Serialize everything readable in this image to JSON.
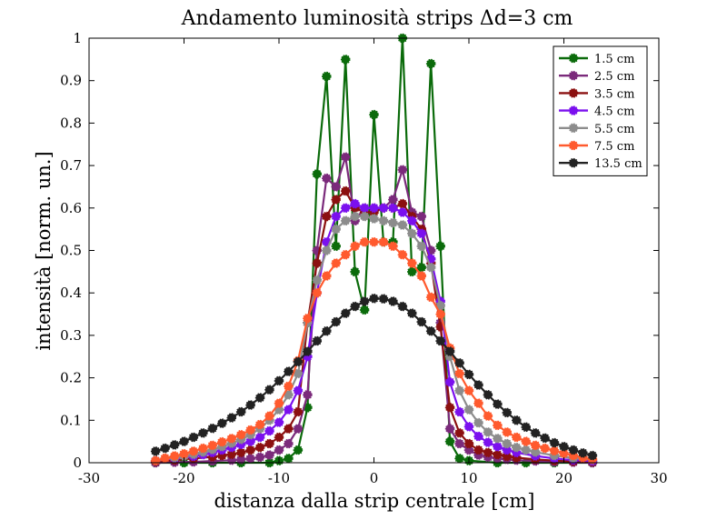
{
  "chart_data": {
    "type": "line",
    "title": "Andamento luminosità strips Δd=3 cm",
    "xlabel": "distanza dalla strip centrale [cm]",
    "ylabel": "intensità [norm. un.]",
    "xlim": [
      -30,
      30
    ],
    "ylim": [
      0,
      1
    ],
    "xticks": [
      "-30",
      "-20",
      "-10",
      "0",
      "10",
      "20",
      "30"
    ],
    "yticks": [
      "0",
      "0.1",
      "0.2",
      "0.3",
      "0.4",
      "0.5",
      "0.6",
      "0.7",
      "0.8",
      "0.9",
      "1"
    ],
    "grid": false,
    "legend_position": "top-right",
    "series": [
      {
        "name": "1.5 cm",
        "color": "#0b6b0b",
        "points": [
          [
            -23,
            0.0
          ],
          [
            -20,
            0.0
          ],
          [
            -17,
            0.0
          ],
          [
            -14,
            0.0
          ],
          [
            -11,
            0.0
          ],
          [
            -10,
            0.005
          ],
          [
            -9,
            0.01
          ],
          [
            -8,
            0.03
          ],
          [
            -7,
            0.13
          ],
          [
            -6,
            0.68
          ],
          [
            -5,
            0.91
          ],
          [
            -4,
            0.51
          ],
          [
            -3,
            0.95
          ],
          [
            -2,
            0.45
          ],
          [
            -1,
            0.36
          ],
          [
            0,
            0.82
          ],
          [
            1,
            0.52
          ],
          [
            2,
            0.52
          ],
          [
            3,
            1.0
          ],
          [
            4,
            0.45
          ],
          [
            5,
            0.46
          ],
          [
            6,
            0.94
          ],
          [
            7,
            0.51
          ],
          [
            8,
            0.05
          ],
          [
            9,
            0.01
          ],
          [
            10,
            0.005
          ],
          [
            13,
            0.0
          ],
          [
            16,
            0.0
          ],
          [
            19,
            0.0
          ],
          [
            23,
            0.0
          ]
        ]
      },
      {
        "name": "2.5 cm",
        "color": "#7b2a7b",
        "points": [
          [
            -23,
            0.0
          ],
          [
            -21,
            0.001
          ],
          [
            -19,
            0.002
          ],
          [
            -17,
            0.004
          ],
          [
            -15,
            0.006
          ],
          [
            -14,
            0.008
          ],
          [
            -13,
            0.01
          ],
          [
            -12,
            0.013
          ],
          [
            -11,
            0.018
          ],
          [
            -10,
            0.03
          ],
          [
            -9,
            0.045
          ],
          [
            -8,
            0.08
          ],
          [
            -7,
            0.16
          ],
          [
            -6,
            0.5
          ],
          [
            -5,
            0.67
          ],
          [
            -4,
            0.65
          ],
          [
            -3,
            0.72
          ],
          [
            -2,
            0.57
          ],
          [
            -1,
            0.6
          ],
          [
            0,
            0.6
          ],
          [
            1,
            0.6
          ],
          [
            2,
            0.62
          ],
          [
            3,
            0.69
          ],
          [
            4,
            0.59
          ],
          [
            5,
            0.58
          ],
          [
            6,
            0.5
          ],
          [
            7,
            0.33
          ],
          [
            8,
            0.08
          ],
          [
            9,
            0.045
          ],
          [
            10,
            0.03
          ],
          [
            11,
            0.018
          ],
          [
            12,
            0.013
          ],
          [
            13,
            0.01
          ],
          [
            14,
            0.008
          ],
          [
            15,
            0.006
          ],
          [
            17,
            0.004
          ],
          [
            19,
            0.002
          ],
          [
            21,
            0.001
          ],
          [
            23,
            0.0
          ]
        ]
      },
      {
        "name": "3.5 cm",
        "color": "#8b1010",
        "points": [
          [
            -23,
            0.003
          ],
          [
            -21,
            0.006
          ],
          [
            -19,
            0.01
          ],
          [
            -17,
            0.014
          ],
          [
            -16,
            0.017
          ],
          [
            -15,
            0.02
          ],
          [
            -14,
            0.024
          ],
          [
            -13,
            0.03
          ],
          [
            -12,
            0.036
          ],
          [
            -11,
            0.045
          ],
          [
            -10,
            0.06
          ],
          [
            -9,
            0.08
          ],
          [
            -8,
            0.12
          ],
          [
            -7,
            0.33
          ],
          [
            -6,
            0.47
          ],
          [
            -5,
            0.58
          ],
          [
            -4,
            0.62
          ],
          [
            -3,
            0.64
          ],
          [
            -2,
            0.6
          ],
          [
            -1,
            0.59
          ],
          [
            0,
            0.59
          ],
          [
            1,
            0.6
          ],
          [
            2,
            0.6
          ],
          [
            3,
            0.61
          ],
          [
            4,
            0.58
          ],
          [
            5,
            0.55
          ],
          [
            6,
            0.47
          ],
          [
            7,
            0.32
          ],
          [
            8,
            0.13
          ],
          [
            9,
            0.07
          ],
          [
            10,
            0.045
          ],
          [
            11,
            0.03
          ],
          [
            12,
            0.024
          ],
          [
            13,
            0.019
          ],
          [
            14,
            0.015
          ],
          [
            15,
            0.012
          ],
          [
            17,
            0.008
          ],
          [
            19,
            0.005
          ],
          [
            21,
            0.003
          ],
          [
            23,
            0.002
          ]
        ]
      },
      {
        "name": "4.5 cm",
        "color": "#7b10ee",
        "points": [
          [
            -23,
            0.005
          ],
          [
            -21,
            0.01
          ],
          [
            -19,
            0.015
          ],
          [
            -18,
            0.019
          ],
          [
            -17,
            0.024
          ],
          [
            -16,
            0.03
          ],
          [
            -15,
            0.036
          ],
          [
            -14,
            0.043
          ],
          [
            -13,
            0.05
          ],
          [
            -12,
            0.06
          ],
          [
            -11,
            0.075
          ],
          [
            -10,
            0.095
          ],
          [
            -9,
            0.125
          ],
          [
            -8,
            0.17
          ],
          [
            -7,
            0.25
          ],
          [
            -6,
            0.4
          ],
          [
            -5,
            0.52
          ],
          [
            -4,
            0.58
          ],
          [
            -3,
            0.6
          ],
          [
            -2,
            0.61
          ],
          [
            -1,
            0.6
          ],
          [
            0,
            0.6
          ],
          [
            1,
            0.6
          ],
          [
            2,
            0.6
          ],
          [
            3,
            0.59
          ],
          [
            4,
            0.57
          ],
          [
            5,
            0.54
          ],
          [
            6,
            0.48
          ],
          [
            7,
            0.38
          ],
          [
            8,
            0.19
          ],
          [
            9,
            0.12
          ],
          [
            10,
            0.085
          ],
          [
            11,
            0.062
          ],
          [
            12,
            0.048
          ],
          [
            13,
            0.038
          ],
          [
            14,
            0.03
          ],
          [
            15,
            0.024
          ],
          [
            17,
            0.016
          ],
          [
            19,
            0.01
          ],
          [
            21,
            0.006
          ],
          [
            23,
            0.004
          ]
        ]
      },
      {
        "name": "5.5 cm",
        "color": "#8c8c8c",
        "points": [
          [
            -23,
            0.005
          ],
          [
            -21,
            0.012
          ],
          [
            -20,
            0.016
          ],
          [
            -19,
            0.02
          ],
          [
            -18,
            0.025
          ],
          [
            -17,
            0.031
          ],
          [
            -16,
            0.038
          ],
          [
            -15,
            0.046
          ],
          [
            -14,
            0.055
          ],
          [
            -13,
            0.066
          ],
          [
            -12,
            0.08
          ],
          [
            -11,
            0.1
          ],
          [
            -10,
            0.125
          ],
          [
            -9,
            0.16
          ],
          [
            -8,
            0.21
          ],
          [
            -7,
            0.33
          ],
          [
            -6,
            0.43
          ],
          [
            -5,
            0.5
          ],
          [
            -4,
            0.55
          ],
          [
            -3,
            0.57
          ],
          [
            -2,
            0.58
          ],
          [
            -1,
            0.58
          ],
          [
            0,
            0.575
          ],
          [
            1,
            0.57
          ],
          [
            2,
            0.565
          ],
          [
            3,
            0.56
          ],
          [
            4,
            0.54
          ],
          [
            5,
            0.51
          ],
          [
            6,
            0.46
          ],
          [
            7,
            0.37
          ],
          [
            8,
            0.25
          ],
          [
            9,
            0.17
          ],
          [
            10,
            0.125
          ],
          [
            11,
            0.094
          ],
          [
            12,
            0.072
          ],
          [
            13,
            0.057
          ],
          [
            14,
            0.045
          ],
          [
            15,
            0.036
          ],
          [
            16,
            0.03
          ],
          [
            17,
            0.025
          ],
          [
            19,
            0.017
          ],
          [
            21,
            0.011
          ],
          [
            23,
            0.007
          ]
        ]
      },
      {
        "name": "7.5 cm",
        "color": "#ff5a2e",
        "points": [
          [
            -23,
            0.005
          ],
          [
            -22,
            0.011
          ],
          [
            -21,
            0.016
          ],
          [
            -20,
            0.021
          ],
          [
            -19,
            0.027
          ],
          [
            -18,
            0.034
          ],
          [
            -17,
            0.041
          ],
          [
            -16,
            0.049
          ],
          [
            -15,
            0.057
          ],
          [
            -14,
            0.066
          ],
          [
            -13,
            0.077
          ],
          [
            -12,
            0.09
          ],
          [
            -11,
            0.11
          ],
          [
            -10,
            0.14
          ],
          [
            -9,
            0.18
          ],
          [
            -8,
            0.24
          ],
          [
            -7,
            0.34
          ],
          [
            -6,
            0.4
          ],
          [
            -5,
            0.44
          ],
          [
            -4,
            0.47
          ],
          [
            -3,
            0.49
          ],
          [
            -2,
            0.51
          ],
          [
            -1,
            0.52
          ],
          [
            0,
            0.52
          ],
          [
            1,
            0.52
          ],
          [
            2,
            0.51
          ],
          [
            3,
            0.49
          ],
          [
            4,
            0.47
          ],
          [
            5,
            0.44
          ],
          [
            6,
            0.39
          ],
          [
            7,
            0.35
          ],
          [
            8,
            0.27
          ],
          [
            9,
            0.21
          ],
          [
            10,
            0.17
          ],
          [
            11,
            0.14
          ],
          [
            12,
            0.11
          ],
          [
            13,
            0.088
          ],
          [
            14,
            0.072
          ],
          [
            15,
            0.06
          ],
          [
            16,
            0.05
          ],
          [
            17,
            0.041
          ],
          [
            18,
            0.034
          ],
          [
            19,
            0.028
          ],
          [
            20,
            0.022
          ],
          [
            21,
            0.017
          ],
          [
            22,
            0.012
          ],
          [
            23,
            0.008
          ]
        ]
      },
      {
        "name": "13.5 cm",
        "color": "#222222",
        "points": [
          [
            -23,
            0.027
          ],
          [
            -22,
            0.034
          ],
          [
            -21,
            0.042
          ],
          [
            -20,
            0.05
          ],
          [
            -19,
            0.06
          ],
          [
            -18,
            0.07
          ],
          [
            -17,
            0.081
          ],
          [
            -16,
            0.093
          ],
          [
            -15,
            0.106
          ],
          [
            -14,
            0.12
          ],
          [
            -13,
            0.136
          ],
          [
            -12,
            0.153
          ],
          [
            -11,
            0.172
          ],
          [
            -10,
            0.193
          ],
          [
            -9,
            0.215
          ],
          [
            -8,
            0.238
          ],
          [
            -7,
            0.262
          ],
          [
            -6,
            0.287
          ],
          [
            -5,
            0.31
          ],
          [
            -4,
            0.332
          ],
          [
            -3,
            0.352
          ],
          [
            -2,
            0.368
          ],
          [
            -1,
            0.38
          ],
          [
            0,
            0.387
          ],
          [
            1,
            0.386
          ],
          [
            2,
            0.38
          ],
          [
            3,
            0.368
          ],
          [
            4,
            0.352
          ],
          [
            5,
            0.332
          ],
          [
            6,
            0.31
          ],
          [
            7,
            0.287
          ],
          [
            8,
            0.262
          ],
          [
            9,
            0.235
          ],
          [
            10,
            0.208
          ],
          [
            11,
            0.183
          ],
          [
            12,
            0.16
          ],
          [
            13,
            0.138
          ],
          [
            14,
            0.118
          ],
          [
            15,
            0.1
          ],
          [
            16,
            0.084
          ],
          [
            17,
            0.07
          ],
          [
            18,
            0.058
          ],
          [
            19,
            0.047
          ],
          [
            20,
            0.038
          ],
          [
            21,
            0.03
          ],
          [
            22,
            0.023
          ],
          [
            23,
            0.017
          ]
        ]
      }
    ]
  }
}
